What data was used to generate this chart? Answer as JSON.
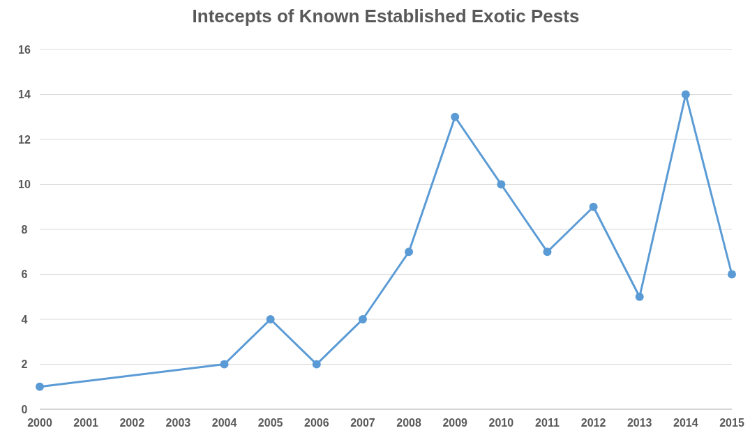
{
  "chart_data": {
    "type": "line",
    "title": "Intecepts of Known Established Exotic Pests",
    "x": [
      2000,
      2004,
      2005,
      2006,
      2007,
      2008,
      2009,
      2010,
      2011,
      2012,
      2013,
      2014,
      2015
    ],
    "series": [
      {
        "color": "#5b9bd5",
        "values": [
          1,
          2,
          4,
          2,
          4,
          7,
          13,
          10,
          7,
          9,
          5,
          14,
          6
        ]
      }
    ],
    "xlim": [
      2000,
      2015
    ],
    "xticks": [
      2000,
      2001,
      2002,
      2003,
      2004,
      2005,
      2006,
      2007,
      2008,
      2009,
      2010,
      2011,
      2012,
      2013,
      2014,
      2015
    ],
    "ylim": [
      0,
      16
    ],
    "yticks": [
      0,
      2,
      4,
      6,
      8,
      10,
      12,
      14,
      16
    ],
    "grid": "y",
    "marker": "circle",
    "line_style": "solid"
  }
}
